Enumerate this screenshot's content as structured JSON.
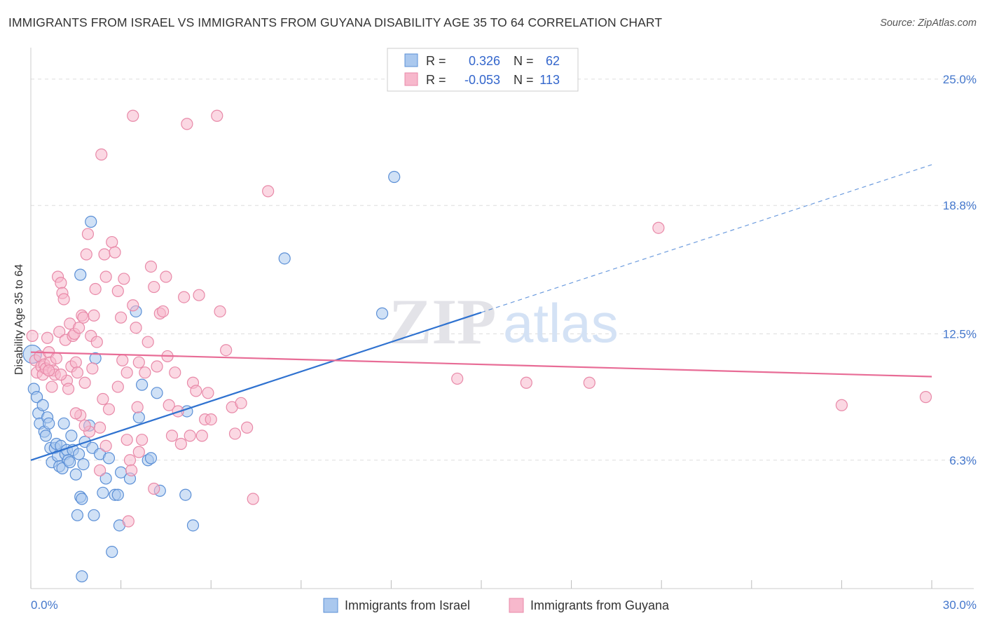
{
  "header": {
    "title": "IMMIGRANTS FROM ISRAEL VS IMMIGRANTS FROM GUYANA DISABILITY AGE 35 TO 64 CORRELATION CHART",
    "source_prefix": "Source: ",
    "source_name": "ZipAtlas.com"
  },
  "watermark": {
    "zip": "ZIP",
    "atlas": "atlas"
  },
  "colors": {
    "israel_fill": "#aac8ee",
    "israel_stroke": "#5b8fd6",
    "israel_line": "#2f72d0",
    "guyana_fill": "#f7b8cc",
    "guyana_stroke": "#e889a8",
    "guyana_line": "#e86c96",
    "axis_text": "#4477cc",
    "grid": "#dddddd"
  },
  "legend": {
    "rows": [
      {
        "r_label": "R =",
        "r_value": "0.326",
        "n_label": "N =",
        "n_value": "62"
      },
      {
        "r_label": "R =",
        "r_value": "-0.053",
        "n_label": "N =",
        "n_value": "113"
      }
    ]
  },
  "chart_data": {
    "type": "scatter",
    "title": "IMMIGRANTS FROM ISRAEL VS IMMIGRANTS FROM GUYANA DISABILITY AGE 35 TO 64 CORRELATION CHART",
    "xlabel": "",
    "ylabel": "Disability Age 35 to 64",
    "xlim": [
      0,
      30
    ],
    "ylim": [
      0,
      26.2
    ],
    "x_tick_labels": {
      "min": "0.0%",
      "max": "30.0%"
    },
    "y_ticks": [
      {
        "value": 6.3,
        "label": "6.3%"
      },
      {
        "value": 12.5,
        "label": "12.5%"
      },
      {
        "value": 18.8,
        "label": "18.8%"
      },
      {
        "value": 25.0,
        "label": "25.0%"
      }
    ],
    "grid": true,
    "legend_position": "top-center",
    "series": [
      {
        "name": "Immigrants from Israel",
        "R": 0.326,
        "N": 62,
        "trend": {
          "x": [
            0,
            15
          ],
          "y": [
            6.3,
            13.55
          ],
          "dashed_to": [
            30,
            20.8
          ]
        },
        "points": [
          [
            0.05,
            11.5
          ],
          [
            0.1,
            9.8
          ],
          [
            0.2,
            9.4
          ],
          [
            0.25,
            8.6
          ],
          [
            0.3,
            8.1
          ],
          [
            0.4,
            9.0
          ],
          [
            0.45,
            7.7
          ],
          [
            0.5,
            7.5
          ],
          [
            0.55,
            8.4
          ],
          [
            0.6,
            8.1
          ],
          [
            0.65,
            6.9
          ],
          [
            0.7,
            6.2
          ],
          [
            0.8,
            6.9
          ],
          [
            0.85,
            7.1
          ],
          [
            0.9,
            6.5
          ],
          [
            0.95,
            6.0
          ],
          [
            1.0,
            7.0
          ],
          [
            1.05,
            5.9
          ],
          [
            1.1,
            8.1
          ],
          [
            1.15,
            6.6
          ],
          [
            1.2,
            6.8
          ],
          [
            1.25,
            6.3
          ],
          [
            1.3,
            6.2
          ],
          [
            1.35,
            7.5
          ],
          [
            1.4,
            6.8
          ],
          [
            1.5,
            5.6
          ],
          [
            1.55,
            3.6
          ],
          [
            1.6,
            6.6
          ],
          [
            1.65,
            4.5
          ],
          [
            1.7,
            4.4
          ],
          [
            1.75,
            6.1
          ],
          [
            1.8,
            7.2
          ],
          [
            1.95,
            8.0
          ],
          [
            2.05,
            6.9
          ],
          [
            2.1,
            3.6
          ],
          [
            2.15,
            11.3
          ],
          [
            2.3,
            6.6
          ],
          [
            2.4,
            4.7
          ],
          [
            2.5,
            5.4
          ],
          [
            2.6,
            6.4
          ],
          [
            2.7,
            1.8
          ],
          [
            2.8,
            4.6
          ],
          [
            2.9,
            4.6
          ],
          [
            2.95,
            3.1
          ],
          [
            3.0,
            5.7
          ],
          [
            3.3,
            5.4
          ],
          [
            3.6,
            8.4
          ],
          [
            3.9,
            6.3
          ],
          [
            4.0,
            6.4
          ],
          [
            4.2,
            9.6
          ],
          [
            4.3,
            4.8
          ],
          [
            5.15,
            4.6
          ],
          [
            5.4,
            3.1
          ],
          [
            8.45,
            16.2
          ],
          [
            11.7,
            13.5
          ],
          [
            12.1,
            20.2
          ],
          [
            1.65,
            15.4
          ],
          [
            2.0,
            18.0
          ],
          [
            3.5,
            13.6
          ],
          [
            3.7,
            10.0
          ],
          [
            5.2,
            8.7
          ],
          [
            1.7,
            0.6
          ]
        ]
      },
      {
        "name": "Immigrants from Guyana",
        "R": -0.053,
        "N": 113,
        "trend": {
          "x": [
            0,
            30
          ],
          "y": [
            11.6,
            10.4
          ]
        },
        "points": [
          [
            0.05,
            12.4
          ],
          [
            0.15,
            11.2
          ],
          [
            0.2,
            10.6
          ],
          [
            0.3,
            11.4
          ],
          [
            0.35,
            10.9
          ],
          [
            0.4,
            10.5
          ],
          [
            0.45,
            11.0
          ],
          [
            0.5,
            10.8
          ],
          [
            0.55,
            12.3
          ],
          [
            0.6,
            11.6
          ],
          [
            0.65,
            11.1
          ],
          [
            0.7,
            9.9
          ],
          [
            0.75,
            10.7
          ],
          [
            0.8,
            10.5
          ],
          [
            0.85,
            11.3
          ],
          [
            0.9,
            15.3
          ],
          [
            0.95,
            12.6
          ],
          [
            1.0,
            15.0
          ],
          [
            1.05,
            14.5
          ],
          [
            1.1,
            14.2
          ],
          [
            1.15,
            12.2
          ],
          [
            1.2,
            10.2
          ],
          [
            1.25,
            9.8
          ],
          [
            1.3,
            13.0
          ],
          [
            1.35,
            10.9
          ],
          [
            1.4,
            12.4
          ],
          [
            1.45,
            12.5
          ],
          [
            1.5,
            11.1
          ],
          [
            1.55,
            10.6
          ],
          [
            1.6,
            12.8
          ],
          [
            1.65,
            8.5
          ],
          [
            1.7,
            13.4
          ],
          [
            1.75,
            13.3
          ],
          [
            1.8,
            10.1
          ],
          [
            1.85,
            16.4
          ],
          [
            1.9,
            17.4
          ],
          [
            1.95,
            7.7
          ],
          [
            2.0,
            12.4
          ],
          [
            2.05,
            10.8
          ],
          [
            2.1,
            13.4
          ],
          [
            2.15,
            14.7
          ],
          [
            2.2,
            12.1
          ],
          [
            2.3,
            5.8
          ],
          [
            2.35,
            21.3
          ],
          [
            2.4,
            9.3
          ],
          [
            2.45,
            16.4
          ],
          [
            2.5,
            15.3
          ],
          [
            2.6,
            8.8
          ],
          [
            2.7,
            17.0
          ],
          [
            2.8,
            16.5
          ],
          [
            2.9,
            14.6
          ],
          [
            3.0,
            13.3
          ],
          [
            3.1,
            15.2
          ],
          [
            3.2,
            10.6
          ],
          [
            3.3,
            6.3
          ],
          [
            3.35,
            5.8
          ],
          [
            3.4,
            13.9
          ],
          [
            3.5,
            12.8
          ],
          [
            3.55,
            8.9
          ],
          [
            3.6,
            6.7
          ],
          [
            3.7,
            7.3
          ],
          [
            3.8,
            10.6
          ],
          [
            3.9,
            12.1
          ],
          [
            4.0,
            15.8
          ],
          [
            4.1,
            14.8
          ],
          [
            4.2,
            10.9
          ],
          [
            4.3,
            13.5
          ],
          [
            4.4,
            13.6
          ],
          [
            4.5,
            15.3
          ],
          [
            4.55,
            11.4
          ],
          [
            4.6,
            9.0
          ],
          [
            4.7,
            7.5
          ],
          [
            4.8,
            10.6
          ],
          [
            4.9,
            8.7
          ],
          [
            5.0,
            7.1
          ],
          [
            5.1,
            14.3
          ],
          [
            5.3,
            7.5
          ],
          [
            5.4,
            10.1
          ],
          [
            5.5,
            9.7
          ],
          [
            5.6,
            14.4
          ],
          [
            5.8,
            8.3
          ],
          [
            5.9,
            9.6
          ],
          [
            6.0,
            8.3
          ],
          [
            6.3,
            13.6
          ],
          [
            6.5,
            11.7
          ],
          [
            6.7,
            8.9
          ],
          [
            6.8,
            7.6
          ],
          [
            7.0,
            9.1
          ],
          [
            7.2,
            7.9
          ],
          [
            7.4,
            4.4
          ],
          [
            7.9,
            19.5
          ],
          [
            4.1,
            4.9
          ],
          [
            3.25,
            3.3
          ],
          [
            3.4,
            23.2
          ],
          [
            5.2,
            22.8
          ],
          [
            6.2,
            23.2
          ],
          [
            2.3,
            7.9
          ],
          [
            3.05,
            11.2
          ],
          [
            3.2,
            7.3
          ],
          [
            14.2,
            10.3
          ],
          [
            16.5,
            10.1
          ],
          [
            18.6,
            10.1
          ],
          [
            20.9,
            17.7
          ],
          [
            27.0,
            9.0
          ],
          [
            29.8,
            9.4
          ],
          [
            1.0,
            10.5
          ],
          [
            0.6,
            10.7
          ],
          [
            1.8,
            8.0
          ],
          [
            2.9,
            9.9
          ],
          [
            3.6,
            11.1
          ],
          [
            1.5,
            8.6
          ],
          [
            2.5,
            7.0
          ],
          [
            5.7,
            7.5
          ]
        ]
      }
    ]
  }
}
